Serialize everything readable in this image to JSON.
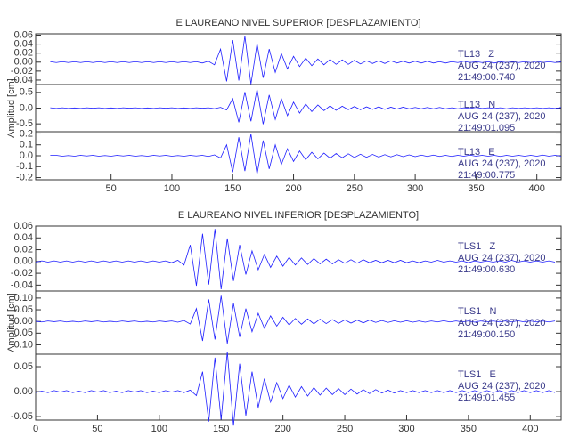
{
  "chart_data": [
    {
      "type": "line",
      "title": "E LAUREANO NIVEL SUPERIOR [DESPLAZAMIENTO]",
      "station": "TL13   Z",
      "date": "AUG 24 (237), 2020",
      "time": "21:49:00.740",
      "color": "#1f1fff",
      "xlim": [
        -12,
        420
      ],
      "ylim": [
        -0.05,
        0.063
      ],
      "yticks": [
        0.06,
        0.04,
        0.02,
        {
          "value": 0,
          "label": "0.00"
        },
        -0.02,
        -0.04
      ],
      "x": [
        0,
        5,
        10,
        15,
        20,
        25,
        30,
        35,
        40,
        45,
        50,
        55,
        60,
        65,
        70,
        75,
        80,
        85,
        90,
        95,
        100,
        105,
        110,
        115,
        120,
        125,
        130,
        135,
        140,
        145,
        150,
        155,
        160,
        165,
        170,
        175,
        180,
        185,
        190,
        195,
        200,
        205,
        210,
        215,
        220,
        225,
        230,
        235,
        240,
        245,
        250,
        255,
        260,
        265,
        270,
        275,
        280,
        285,
        290,
        295,
        300,
        305,
        310,
        315,
        320,
        325,
        330,
        335,
        340,
        345,
        350,
        355,
        360,
        365,
        370,
        375,
        380,
        385,
        390,
        395,
        400,
        405,
        410,
        415,
        420
      ],
      "values": [
        0.001,
        -0.001,
        0.001,
        -0.001,
        0.001,
        -0.001,
        0.001,
        -0.001,
        0.001,
        -0.001,
        0.001,
        -0.001,
        0.001,
        -0.001,
        0.001,
        -0.001,
        0.001,
        -0.001,
        0.001,
        -0.001,
        0.001,
        -0.001,
        0.001,
        -0.001,
        0.001,
        -0.002,
        0.002,
        -0.006,
        0.029,
        -0.043,
        0.049,
        -0.041,
        0.058,
        -0.049,
        0.041,
        -0.035,
        0.029,
        -0.023,
        0.019,
        -0.015,
        0.013,
        -0.01,
        0.009,
        -0.008,
        0.007,
        -0.006,
        0.006,
        -0.005,
        0.005,
        -0.005,
        0.004,
        -0.004,
        0.003,
        -0.003,
        0.003,
        -0.003,
        0.003,
        -0.002,
        0.002,
        -0.002,
        0.002,
        -0.002,
        0.002,
        -0.002,
        0.001,
        -0.002,
        0.001,
        -0.001,
        0.002,
        -0.001,
        0.001,
        -0.001,
        0.001,
        -0.002,
        0.001,
        -0.001,
        0.001,
        -0.001,
        0.001,
        -0.001,
        0.002,
        -0.001,
        0.001,
        -0.001,
        0.001
      ]
    },
    {
      "type": "line",
      "ylabel": "Amplitud [cm]",
      "station": "TL13   N",
      "date": "AUG 24 (237), 2020",
      "time": "21:49:01.095",
      "color": "#1f1fff",
      "xlim": [
        -12,
        420
      ],
      "ylim": [
        -0.75,
        0.75
      ],
      "yticks": [
        0.5,
        {
          "value": 0,
          "label": "0.0"
        },
        -0.5
      ],
      "x": [
        0,
        5,
        10,
        15,
        20,
        25,
        30,
        35,
        40,
        45,
        50,
        55,
        60,
        65,
        70,
        75,
        80,
        85,
        90,
        95,
        100,
        105,
        110,
        115,
        120,
        125,
        130,
        135,
        140,
        145,
        150,
        155,
        160,
        165,
        170,
        175,
        180,
        185,
        190,
        195,
        200,
        205,
        210,
        215,
        220,
        225,
        230,
        235,
        240,
        245,
        250,
        255,
        260,
        265,
        270,
        275,
        280,
        285,
        290,
        295,
        300,
        305,
        310,
        315,
        320,
        325,
        330,
        335,
        340,
        345,
        350,
        355,
        360,
        365,
        370,
        375,
        380,
        385,
        390,
        395,
        400,
        405,
        410,
        415,
        420
      ],
      "values": [
        0.01,
        -0.01,
        0.01,
        -0.01,
        0.006,
        -0.01,
        0.01,
        -0.006,
        0.01,
        -0.01,
        0.006,
        -0.01,
        0.01,
        -0.006,
        0.01,
        -0.01,
        0.006,
        -0.01,
        0.01,
        -0.006,
        0.01,
        -0.01,
        0.006,
        -0.01,
        0.01,
        -0.006,
        0.01,
        -0.018,
        0.024,
        -0.06,
        0.3,
        -0.45,
        0.51,
        -0.42,
        0.6,
        -0.51,
        0.42,
        -0.36,
        0.3,
        -0.24,
        0.19,
        -0.16,
        0.13,
        -0.11,
        0.1,
        -0.08,
        0.07,
        -0.07,
        0.06,
        -0.05,
        0.05,
        -0.05,
        0.04,
        -0.04,
        0.04,
        -0.04,
        0.03,
        -0.03,
        0.03,
        -0.02,
        0.02,
        -0.02,
        0.02,
        -0.02,
        0.02,
        -0.02,
        0.01,
        -0.02,
        0.01,
        -0.01,
        0.02,
        -0.01,
        0.01,
        -0.01,
        0.01,
        -0.02,
        0.01,
        -0.01,
        0.01,
        -0.01,
        0.01,
        -0.01,
        0.01,
        -0.01,
        0.02
      ]
    },
    {
      "type": "line",
      "station": "TL13   E",
      "date": "AUG 24 (237), 2020",
      "time": "21:49:00.775",
      "color": "#1f1fff",
      "xlim": [
        -12,
        420
      ],
      "ylim": [
        -0.22,
        0.22
      ],
      "yticks": [
        0.2,
        0.1,
        {
          "value": 0,
          "label": "0.0"
        },
        -0.1,
        -0.2
      ],
      "xticks": [
        50,
        100,
        150,
        200,
        250,
        300,
        350,
        400
      ],
      "x": [
        0,
        5,
        10,
        15,
        20,
        25,
        30,
        35,
        40,
        45,
        50,
        55,
        60,
        65,
        70,
        75,
        80,
        85,
        90,
        95,
        100,
        105,
        110,
        115,
        120,
        125,
        130,
        135,
        140,
        145,
        150,
        155,
        160,
        165,
        170,
        175,
        180,
        185,
        190,
        195,
        200,
        205,
        210,
        215,
        220,
        225,
        230,
        235,
        240,
        245,
        250,
        255,
        260,
        265,
        270,
        275,
        280,
        285,
        290,
        295,
        300,
        305,
        310,
        315,
        320,
        325,
        330,
        335,
        340,
        345,
        350,
        355,
        360,
        365,
        370,
        375,
        380,
        385,
        390,
        395,
        400,
        405,
        410,
        415,
        420
      ],
      "values": [
        0.004,
        0.004,
        -0.004,
        0.002,
        -0.004,
        0.004,
        -0.002,
        0.004,
        -0.004,
        0.002,
        -0.004,
        0.004,
        -0.002,
        0.004,
        -0.004,
        0.002,
        -0.004,
        0.004,
        -0.002,
        0.004,
        -0.004,
        0.002,
        -0.004,
        0.004,
        -0.002,
        0.004,
        -0.006,
        0.008,
        -0.02,
        0.1,
        -0.15,
        0.17,
        -0.14,
        0.2,
        -0.17,
        0.14,
        -0.12,
        0.1,
        -0.08,
        0.064,
        -0.052,
        0.044,
        -0.036,
        0.032,
        -0.028,
        0.024,
        -0.022,
        0.02,
        -0.018,
        0.018,
        -0.016,
        0.014,
        -0.014,
        0.012,
        -0.012,
        0.01,
        -0.01,
        0.01,
        -0.008,
        0.008,
        -0.008,
        0.006,
        -0.006,
        0.006,
        -0.006,
        0.004,
        -0.006,
        0.004,
        -0.004,
        0.006,
        -0.004,
        0.004,
        -0.004,
        0.004,
        -0.006,
        0.004,
        -0.004,
        0.004,
        -0.004,
        0.004,
        -0.004,
        0.006,
        -0.004,
        0.004,
        -0.004
      ]
    },
    {
      "type": "line",
      "title": "E LAUREANO NIVEL INFERIOR [DESPLAZAMIENTO]",
      "station": "TLS1   Z",
      "date": "AUG 24 (237), 2020",
      "time": "21:49:00.630",
      "color": "#1f1fff",
      "xlim": [
        0,
        425
      ],
      "ylim": [
        -0.05,
        0.06
      ],
      "yticks": [
        0.06,
        0.04,
        0.02,
        {
          "value": 0,
          "label": "0.00"
        },
        -0.02,
        -0.04
      ],
      "x": [
        0,
        5,
        10,
        15,
        20,
        25,
        30,
        35,
        40,
        45,
        50,
        55,
        60,
        65,
        70,
        75,
        80,
        85,
        90,
        95,
        100,
        105,
        110,
        115,
        120,
        125,
        130,
        135,
        140,
        145,
        150,
        155,
        160,
        165,
        170,
        175,
        180,
        185,
        190,
        195,
        200,
        205,
        210,
        215,
        220,
        225,
        230,
        235,
        240,
        245,
        250,
        255,
        260,
        265,
        270,
        275,
        280,
        285,
        290,
        295,
        300,
        305,
        310,
        315,
        320,
        325,
        330,
        335,
        340,
        345,
        350,
        355,
        360,
        365,
        370,
        375,
        380,
        385,
        390,
        395,
        400,
        405,
        410,
        415,
        420
      ],
      "values": [
        -0.001,
        0.001,
        -0.001,
        0.001,
        -0.001,
        0.001,
        -0.001,
        0.001,
        -0.001,
        0.001,
        -0.001,
        0.001,
        -0.001,
        0.001,
        -0.001,
        0.001,
        -0.001,
        0.001,
        -0.001,
        0.001,
        -0.001,
        0.001,
        -0.002,
        0.002,
        -0.006,
        0.028,
        -0.041,
        0.047,
        -0.039,
        0.055,
        -0.047,
        0.039,
        -0.033,
        0.028,
        -0.022,
        0.018,
        -0.014,
        0.012,
        -0.01,
        0.009,
        -0.008,
        0.007,
        -0.006,
        0.006,
        -0.005,
        0.005,
        -0.004,
        0.004,
        -0.004,
        0.003,
        -0.003,
        0.003,
        -0.003,
        0.003,
        -0.002,
        0.002,
        -0.002,
        0.002,
        -0.002,
        0.002,
        -0.002,
        0.001,
        -0.002,
        0.001,
        -0.001,
        0.002,
        -0.001,
        0.001,
        -0.001,
        0.001,
        -0.002,
        0.001,
        -0.001,
        0.001,
        -0.001,
        0.001,
        -0.001,
        0.002,
        -0.001,
        0.001,
        -0.001,
        0.001,
        -0.001,
        0.001,
        -0.001
      ]
    },
    {
      "type": "line",
      "ylabel": "Amplitud [cm]",
      "station": "TLS1   N",
      "date": "AUG 24 (237), 2020",
      "time": "21:49:00.150",
      "color": "#1f1fff",
      "xlim": [
        0,
        425
      ],
      "ylim": [
        -0.14,
        0.13
      ],
      "yticks": [
        {
          "value": 0.1,
          "label": "0.10"
        },
        0.05,
        {
          "value": 0,
          "label": "0.00"
        },
        -0.05,
        {
          "value": -0.1,
          "label": "-0.10"
        }
      ],
      "x": [
        0,
        5,
        10,
        15,
        20,
        25,
        30,
        35,
        40,
        45,
        50,
        55,
        60,
        65,
        70,
        75,
        80,
        85,
        90,
        95,
        100,
        105,
        110,
        115,
        120,
        125,
        130,
        135,
        140,
        145,
        150,
        155,
        160,
        165,
        170,
        175,
        180,
        185,
        190,
        195,
        200,
        205,
        210,
        215,
        220,
        225,
        230,
        235,
        240,
        245,
        250,
        255,
        260,
        265,
        270,
        275,
        280,
        285,
        290,
        295,
        300,
        305,
        310,
        315,
        320,
        325,
        330,
        335,
        340,
        345,
        350,
        355,
        360,
        365,
        370,
        375,
        380,
        385,
        390,
        395,
        400,
        405,
        410,
        415,
        420
      ],
      "values": [
        0.001,
        -0.002,
        0.002,
        -0.001,
        0.002,
        -0.002,
        0.001,
        -0.002,
        0.002,
        -0.001,
        0.002,
        -0.002,
        0.001,
        -0.002,
        0.002,
        -0.001,
        0.002,
        -0.002,
        0.001,
        -0.002,
        0.002,
        -0.001,
        0.002,
        -0.003,
        0.004,
        -0.011,
        0.055,
        -0.083,
        0.094,
        -0.077,
        0.11,
        -0.094,
        0.077,
        -0.066,
        0.055,
        -0.044,
        0.035,
        -0.029,
        0.024,
        -0.02,
        0.018,
        -0.015,
        0.013,
        -0.012,
        0.011,
        -0.01,
        0.01,
        -0.009,
        0.008,
        -0.008,
        0.007,
        -0.007,
        0.006,
        -0.006,
        0.006,
        -0.004,
        0.004,
        -0.004,
        0.003,
        -0.003,
        0.003,
        -0.003,
        0.002,
        -0.003,
        0.002,
        -0.002,
        0.003,
        -0.002,
        0.002,
        -0.002,
        0.002,
        -0.003,
        0.002,
        -0.002,
        0.002,
        -0.002,
        0.002,
        -0.002,
        0.003,
        -0.002,
        0.002,
        -0.002,
        0.002,
        -0.002,
        0.002
      ]
    },
    {
      "type": "line",
      "station": "TLS1   E",
      "date": "AUG 24 (237), 2020",
      "time": "21:49:01.455",
      "color": "#1f1fff",
      "xlim": [
        0,
        425
      ],
      "ylim": [
        -0.057,
        0.075
      ],
      "yticks": [
        0.05,
        {
          "value": 0,
          "label": "0.00"
        },
        -0.05
      ],
      "xticks": [
        0,
        50,
        100,
        150,
        200,
        250,
        300,
        350,
        400
      ],
      "x": [
        0,
        5,
        10,
        15,
        20,
        25,
        30,
        35,
        40,
        45,
        50,
        55,
        60,
        65,
        70,
        75,
        80,
        85,
        90,
        95,
        100,
        105,
        110,
        115,
        120,
        125,
        130,
        135,
        140,
        145,
        150,
        155,
        160,
        165,
        170,
        175,
        180,
        185,
        190,
        195,
        200,
        205,
        210,
        215,
        220,
        225,
        230,
        235,
        240,
        245,
        250,
        255,
        260,
        265,
        270,
        275,
        280,
        285,
        290,
        295,
        300,
        305,
        310,
        315,
        320,
        325,
        330,
        335,
        340,
        345,
        350,
        355,
        360,
        365,
        370,
        375,
        380,
        385,
        390,
        395,
        400,
        405,
        410,
        415,
        420
      ],
      "values": [
        -0.002,
        0.001,
        -0.002,
        0.002,
        -0.001,
        0.002,
        -0.002,
        0.001,
        -0.002,
        0.002,
        -0.001,
        0.002,
        -0.002,
        0.001,
        -0.002,
        0.002,
        -0.001,
        0.002,
        -0.002,
        0.001,
        -0.002,
        0.002,
        -0.001,
        0.002,
        -0.002,
        0.003,
        -0.008,
        0.04,
        -0.06,
        0.068,
        -0.056,
        0.08,
        -0.068,
        0.056,
        -0.048,
        0.04,
        -0.032,
        0.026,
        -0.021,
        0.018,
        -0.014,
        0.013,
        -0.011,
        0.01,
        -0.009,
        0.008,
        -0.007,
        0.007,
        -0.006,
        0.006,
        -0.006,
        0.005,
        -0.005,
        0.004,
        -0.004,
        0.004,
        -0.003,
        0.003,
        -0.003,
        0.002,
        -0.002,
        0.002,
        -0.002,
        0.002,
        -0.002,
        0.002,
        -0.002,
        0.002,
        -0.002,
        0.002,
        -0.002,
        0.002,
        -0.002,
        0.002,
        -0.002,
        0.002,
        -0.002,
        0.002,
        -0.002,
        0.002,
        -0.002,
        0.002,
        -0.002,
        0.002,
        -0.002
      ]
    }
  ]
}
